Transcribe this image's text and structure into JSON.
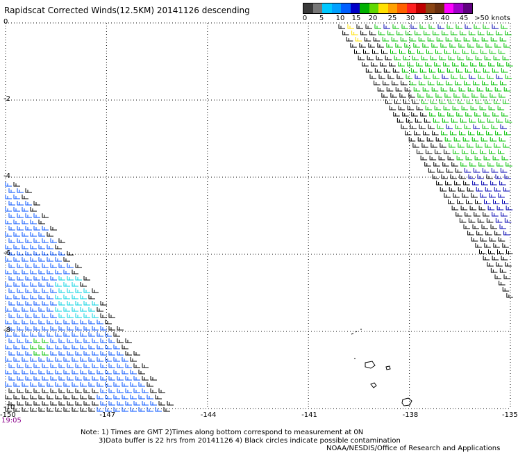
{
  "title": "Rapidscat Corrected Winds(12.5KM) 20141126 descending",
  "legend": {
    "colors": [
      "#3a3a3a",
      "#777777",
      "#00c8ff",
      "#00a0ff",
      "#0060ff",
      "#0000c8",
      "#00b000",
      "#60d800",
      "#ffe000",
      "#ffa000",
      "#ff6000",
      "#ff2020",
      "#c00000",
      "#8b4513",
      "#6b3010",
      "#ff00ff",
      "#a000c8",
      "#600080"
    ],
    "ticks": [
      "0",
      "5",
      "10",
      "15",
      "20",
      "25",
      "30",
      "35",
      "40",
      "45",
      ">50 knots"
    ]
  },
  "map": {
    "x_ticks": [
      "-150",
      "-147",
      "-144",
      "-141",
      "-138",
      "-135"
    ],
    "y_ticks": [
      "0",
      "-2",
      "-4",
      "-6",
      "-8",
      "-10"
    ],
    "lon_range": [
      -150,
      -135
    ],
    "lat_range": [
      -10,
      0
    ],
    "barb_colors": {
      "light": "#00d0e0",
      "blue": "#0050ff",
      "dark_blue": "#0000b0",
      "green": "#00c000",
      "yellow": "#ffe000",
      "black": "#000000"
    }
  },
  "time_label": "19:05",
  "notes": {
    "line1": "Note: 1) Times are GMT 2)Times along bottom correspond to measurement at 0N",
    "line2": "3)Data buffer is 22 hrs from 20141126 4) Black circles indicate possible contamination",
    "line3": "NOAA/NESDIS/Office of Research and Applications"
  }
}
